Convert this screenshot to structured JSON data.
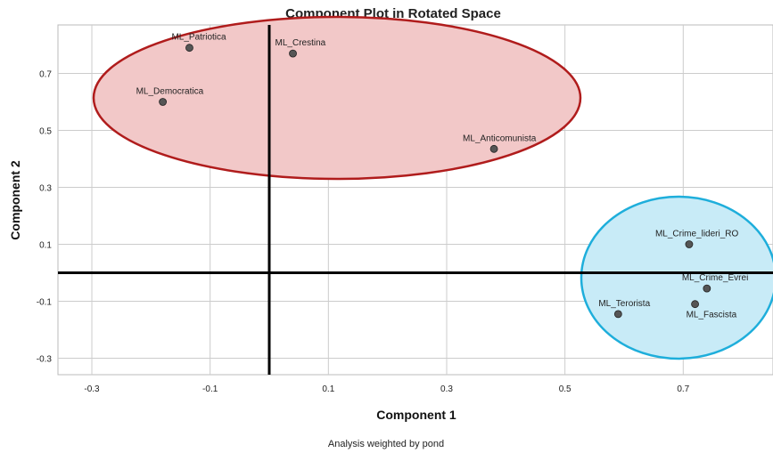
{
  "chart_data": {
    "type": "scatter",
    "title": "Component Plot in Rotated Space",
    "xlabel": "Component 1",
    "ylabel": "Component 2",
    "footnote": "Analysis weighted by pond",
    "xlim": [
      -0.35,
      0.85
    ],
    "ylim": [
      -0.35,
      0.85
    ],
    "x_ticks": [
      -0.3,
      -0.1,
      0.1,
      0.3,
      0.5,
      0.7
    ],
    "y_ticks": [
      0.7,
      0.5,
      0.3,
      0.1,
      -0.1,
      -0.3
    ],
    "grid": true,
    "points": [
      {
        "label": "ML_Patriotica",
        "x": -0.135,
        "y": 0.79
      },
      {
        "label": "ML_Crestina",
        "x": 0.04,
        "y": 0.77
      },
      {
        "label": "ML_Democratica",
        "x": -0.18,
        "y": 0.6
      },
      {
        "label": "ML_Anticomunista",
        "x": 0.38,
        "y": 0.435
      },
      {
        "label": "ML_Crime_lideri_RO",
        "x": 0.71,
        "y": 0.1
      },
      {
        "label": "ML_Crime_Evrei",
        "x": 0.74,
        "y": -0.055
      },
      {
        "label": "ML_Terorista",
        "x": 0.59,
        "y": -0.145
      },
      {
        "label": "ML_Fascista",
        "x": 0.72,
        "y": -0.11
      }
    ],
    "colors": {
      "point": "#555555",
      "cluster_1_fill": "#f2c8c8",
      "cluster_1_stroke": "#b01c1c",
      "cluster_2_fill": "#c8ebf7",
      "cluster_2_stroke": "#1eaedb",
      "grid": "#cccccc",
      "axis_lines": "#000000"
    }
  }
}
